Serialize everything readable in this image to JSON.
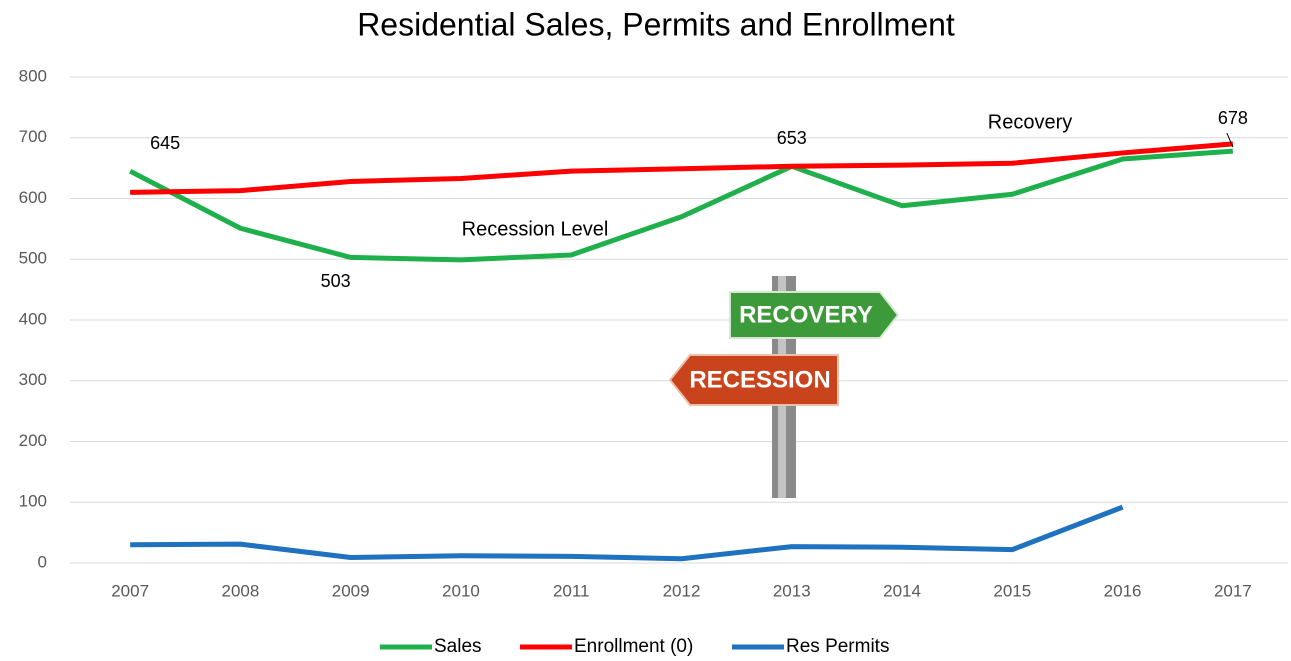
{
  "chart_data": {
    "type": "line",
    "title": "Residential Sales, Permits and Enrollment",
    "categories": [
      "2007",
      "2008",
      "2009",
      "2010",
      "2011",
      "2012",
      "2013",
      "2014",
      "2015",
      "2016",
      "2017"
    ],
    "series": [
      {
        "name": "Sales",
        "color": "#1fb04c",
        "values": [
          645,
          551,
          503,
          499,
          507,
          570,
          653,
          588,
          607,
          665,
          678
        ],
        "value_labels": [
          "645",
          null,
          "503",
          null,
          null,
          null,
          "653",
          null,
          null,
          null,
          "678"
        ]
      },
      {
        "name": "Enrollment (0)",
        "color": "#ff0000",
        "values": [
          610,
          613,
          628,
          633,
          645,
          649,
          653,
          655,
          658,
          675,
          690
        ]
      },
      {
        "name": "Res Permits",
        "color": "#1f72c0",
        "values": [
          30,
          31,
          9,
          12,
          11,
          7,
          27,
          26,
          22,
          92,
          null
        ]
      }
    ],
    "annotations": [
      "Recession Level",
      "Recovery"
    ],
    "ylim": [
      0,
      800
    ],
    "yticks": [
      0,
      100,
      200,
      300,
      400,
      500,
      600,
      700,
      800
    ],
    "grid": true,
    "legend": "bottom"
  },
  "illustration": {
    "top_sign": "RECOVERY",
    "bottom_sign": "RECESSION"
  }
}
